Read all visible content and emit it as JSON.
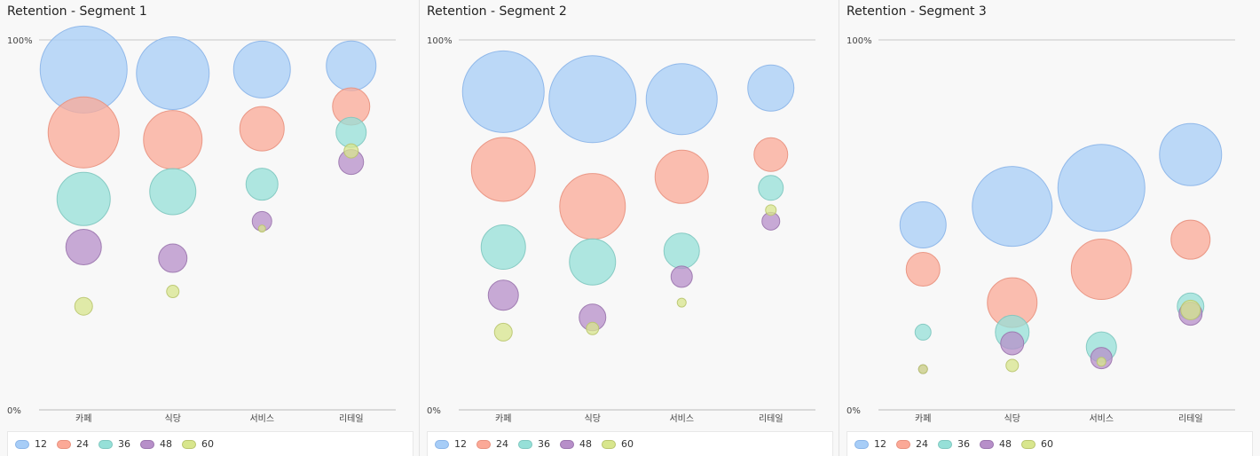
{
  "legend": [
    {
      "label": "12",
      "color": "#a7cdf7",
      "stroke": "#8ab4e8"
    },
    {
      "label": "24",
      "color": "#fba997",
      "stroke": "#e8907d"
    },
    {
      "label": "36",
      "color": "#96e0d8",
      "stroke": "#7ec7bf"
    },
    {
      "label": "48",
      "color": "#b78fc9",
      "stroke": "#9a74ad"
    },
    {
      "label": "60",
      "color": "#d8e68d",
      "stroke": "#b9c56e"
    }
  ],
  "chart_data": [
    {
      "type": "scatter",
      "title": "Retention - Segment 1",
      "categories": [
        "카페",
        "식당",
        "서비스",
        "리테일"
      ],
      "ylim": [
        0,
        100
      ],
      "y_ticks": [
        "100%",
        "0%"
      ],
      "series": [
        {
          "name": "12",
          "y": [
            92,
            91,
            92,
            93
          ],
          "size": [
            49,
            41,
            32,
            28
          ]
        },
        {
          "name": "24",
          "y": [
            75,
            73,
            76,
            82
          ],
          "size": [
            40,
            33,
            25,
            21
          ]
        },
        {
          "name": "36",
          "y": [
            57,
            59,
            61,
            75
          ],
          "size": [
            30,
            26,
            18,
            17
          ]
        },
        {
          "name": "48",
          "y": [
            44,
            41,
            51,
            67
          ],
          "size": [
            20,
            16,
            11,
            14
          ]
        },
        {
          "name": "60",
          "y": [
            28,
            32,
            49,
            70
          ],
          "size": [
            10,
            7,
            4,
            8
          ]
        }
      ]
    },
    {
      "type": "scatter",
      "title": "Retention - Segment 2",
      "categories": [
        "카페",
        "식당",
        "서비스",
        "리테일"
      ],
      "ylim": [
        0,
        100
      ],
      "y_ticks": [
        "100%",
        "0%"
      ],
      "series": [
        {
          "name": "12",
          "y": [
            86,
            84,
            84,
            87
          ],
          "size": [
            46,
            49,
            40,
            26
          ]
        },
        {
          "name": "24",
          "y": [
            65,
            55,
            63,
            69
          ],
          "size": [
            36,
            37,
            30,
            19
          ]
        },
        {
          "name": "36",
          "y": [
            44,
            40,
            43,
            60
          ],
          "size": [
            25,
            26,
            20,
            14
          ]
        },
        {
          "name": "48",
          "y": [
            31,
            25,
            36,
            51
          ],
          "size": [
            17,
            15,
            12,
            10
          ]
        },
        {
          "name": "60",
          "y": [
            21,
            22,
            29,
            54
          ],
          "size": [
            10,
            7,
            5,
            6
          ]
        }
      ]
    },
    {
      "type": "scatter",
      "title": "Retention - Segment 3",
      "categories": [
        "카페",
        "식당",
        "서비스",
        "리테일"
      ],
      "ylim": [
        0,
        100
      ],
      "y_ticks": [
        "100%",
        "0%"
      ],
      "series": [
        {
          "name": "12",
          "y": [
            50,
            55,
            60,
            69
          ],
          "size": [
            26,
            45,
            49,
            35
          ]
        },
        {
          "name": "24",
          "y": [
            38,
            29,
            38,
            46
          ],
          "size": [
            19,
            28,
            34,
            22
          ]
        },
        {
          "name": "36",
          "y": [
            21,
            21,
            17,
            28
          ],
          "size": [
            9,
            19,
            17,
            15
          ]
        },
        {
          "name": "48",
          "y": [
            11,
            18,
            14,
            26
          ],
          "size": [
            5,
            13,
            12,
            13
          ]
        },
        {
          "name": "60",
          "y": [
            11,
            12,
            13,
            27
          ],
          "size": [
            5,
            7,
            5,
            11
          ]
        }
      ]
    }
  ]
}
